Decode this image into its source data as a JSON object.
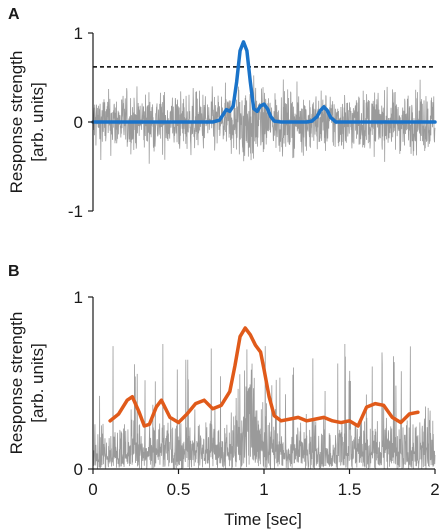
{
  "chart_data": [
    {
      "panel": "A",
      "type": "line",
      "ylabel_line1": "Response strength",
      "ylabel_line2": "[arb. units]",
      "xlim": [
        0,
        2
      ],
      "ylim": [
        -1,
        1
      ],
      "yticks": [
        -1,
        0,
        1
      ],
      "ytick_labels": [
        "-1",
        "0",
        "1"
      ],
      "noise": {
        "color": "#9a9a9a",
        "type": "bipolar",
        "center": 0,
        "amplitude": 0.4
      },
      "threshold": {
        "value": 0.62,
        "style": "dashed",
        "color": "#000000"
      },
      "series": [
        {
          "color": "#1a73c9",
          "x": [
            0.0,
            0.7,
            0.74,
            0.76,
            0.78,
            0.8,
            0.82,
            0.84,
            0.86,
            0.88,
            0.9,
            0.92,
            0.94,
            0.96,
            0.98,
            1.0,
            1.02,
            1.04,
            1.06,
            1.1,
            1.25,
            1.28,
            1.31,
            1.33,
            1.35,
            1.37,
            1.39,
            1.42,
            1.5,
            2.0
          ],
          "values": [
            0.0,
            0.0,
            0.02,
            0.08,
            0.14,
            0.12,
            0.18,
            0.45,
            0.8,
            0.9,
            0.8,
            0.45,
            0.15,
            0.12,
            0.18,
            0.2,
            0.15,
            0.06,
            0.01,
            0.0,
            0.0,
            0.01,
            0.06,
            0.13,
            0.17,
            0.13,
            0.05,
            0.0,
            0.0,
            0.0
          ]
        }
      ]
    },
    {
      "panel": "B",
      "type": "line",
      "ylabel_line1": "Response strength",
      "ylabel_line2": "[arb. units]",
      "xlabel": "Time [sec]",
      "xlim": [
        0,
        2
      ],
      "ylim": [
        0,
        1
      ],
      "yticks": [
        0,
        1
      ],
      "ytick_labels": [
        "0",
        "1"
      ],
      "xticks": [
        0,
        0.5,
        1,
        1.5,
        2
      ],
      "xtick_labels": [
        "0",
        "0.5",
        "1",
        "1.5",
        "2"
      ],
      "noise": {
        "color": "#9a9a9a",
        "type": "positive",
        "typical_max": 0.35
      },
      "series": [
        {
          "color": "#e05a1a",
          "x": [
            0.1,
            0.15,
            0.2,
            0.23,
            0.27,
            0.3,
            0.33,
            0.37,
            0.4,
            0.45,
            0.5,
            0.55,
            0.6,
            0.65,
            0.7,
            0.75,
            0.8,
            0.83,
            0.86,
            0.89,
            0.92,
            0.95,
            0.98,
            1.0,
            1.03,
            1.06,
            1.1,
            1.15,
            1.2,
            1.25,
            1.3,
            1.35,
            1.4,
            1.45,
            1.5,
            1.55,
            1.6,
            1.65,
            1.7,
            1.75,
            1.8,
            1.85,
            1.9
          ],
          "values": [
            0.28,
            0.32,
            0.4,
            0.42,
            0.33,
            0.25,
            0.26,
            0.36,
            0.4,
            0.3,
            0.27,
            0.32,
            0.38,
            0.4,
            0.35,
            0.37,
            0.45,
            0.6,
            0.77,
            0.82,
            0.78,
            0.72,
            0.68,
            0.58,
            0.42,
            0.31,
            0.28,
            0.29,
            0.3,
            0.28,
            0.29,
            0.3,
            0.28,
            0.27,
            0.28,
            0.25,
            0.36,
            0.38,
            0.37,
            0.3,
            0.27,
            0.32,
            0.33
          ]
        }
      ]
    }
  ]
}
